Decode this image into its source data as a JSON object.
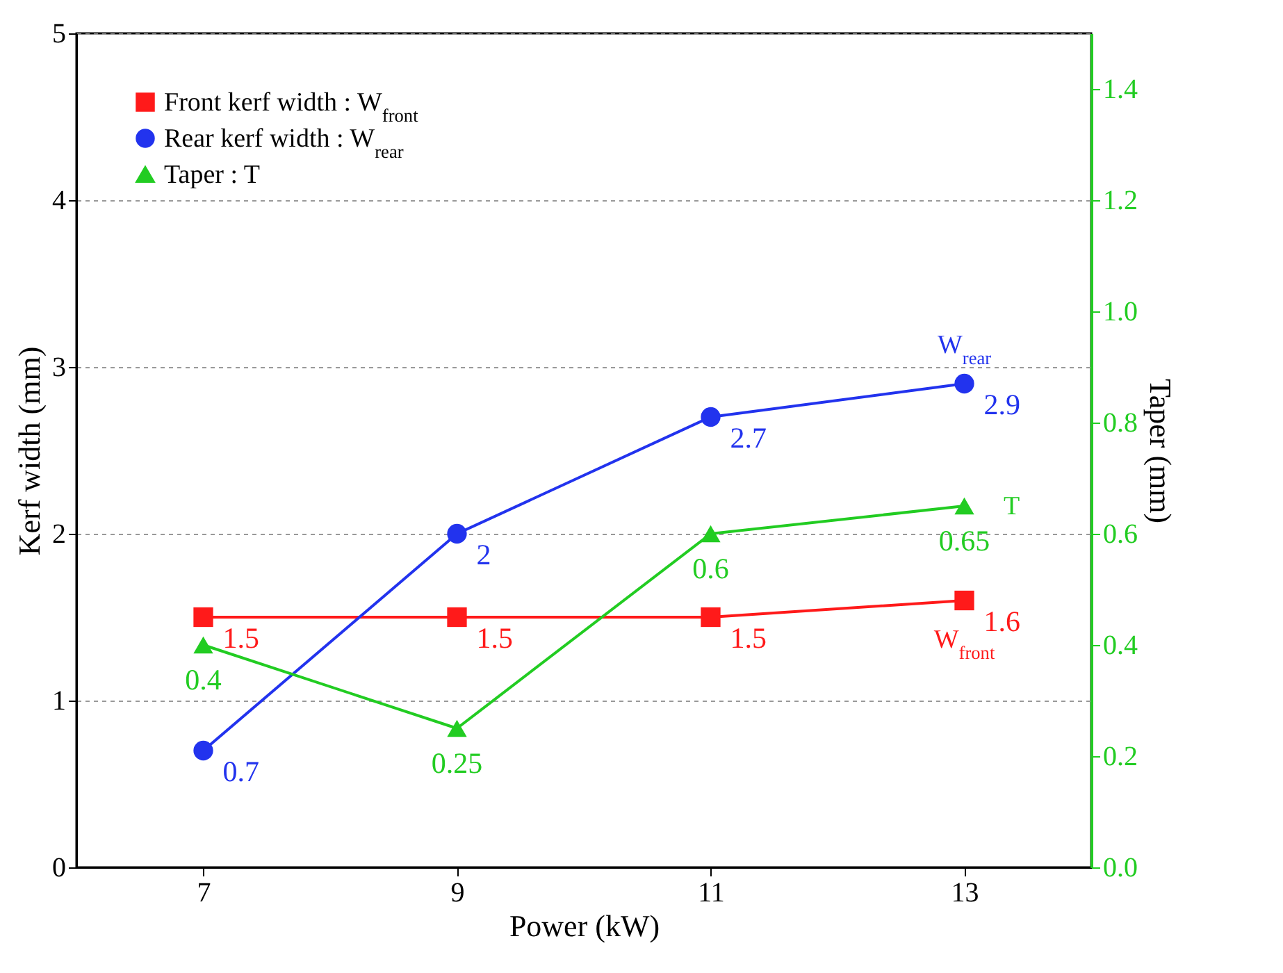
{
  "chart_data": {
    "type": "line",
    "xlabel": "Power (kW)",
    "ylabel": "Kerf width (mm)",
    "y2label": "Taper (mm)",
    "x": [
      7,
      9,
      11,
      13
    ],
    "xlim": [
      6,
      14
    ],
    "xticks": [
      7,
      9,
      11,
      13
    ],
    "ylim": [
      0,
      5
    ],
    "yticks": [
      0,
      1,
      2,
      3,
      4,
      5
    ],
    "y2lim": [
      0,
      1.5
    ],
    "y2ticks": [
      {
        "value": 0,
        "label": "0.0"
      },
      0.2,
      0.4,
      0.6,
      0.8,
      {
        "value": 1,
        "label": "1.0"
      },
      1.2,
      1.4
    ],
    "grid": "y",
    "legend": "top left",
    "data_labels": true,
    "series": [
      {
        "name": "Front kerf width : W$_{front}$",
        "color": "#ff1a1a",
        "marker": "square",
        "values": [
          1.5,
          1.5,
          1.5,
          1.6
        ]
      },
      {
        "name": "Rear kerf width : W$_{rear}$",
        "color": "#2233ee",
        "marker": "circle",
        "values": [
          0.7,
          2,
          2.7,
          2.9
        ]
      },
      {
        "name": "Taper : T",
        "color": "#22cc22",
        "marker": "triangle",
        "axis": "y2",
        "values": [
          0.4,
          0.25,
          0.6,
          0.65
        ]
      }
    ],
    "annotations": [
      "W$_{rear}$",
      "W$_{front}$",
      "T"
    ]
  }
}
